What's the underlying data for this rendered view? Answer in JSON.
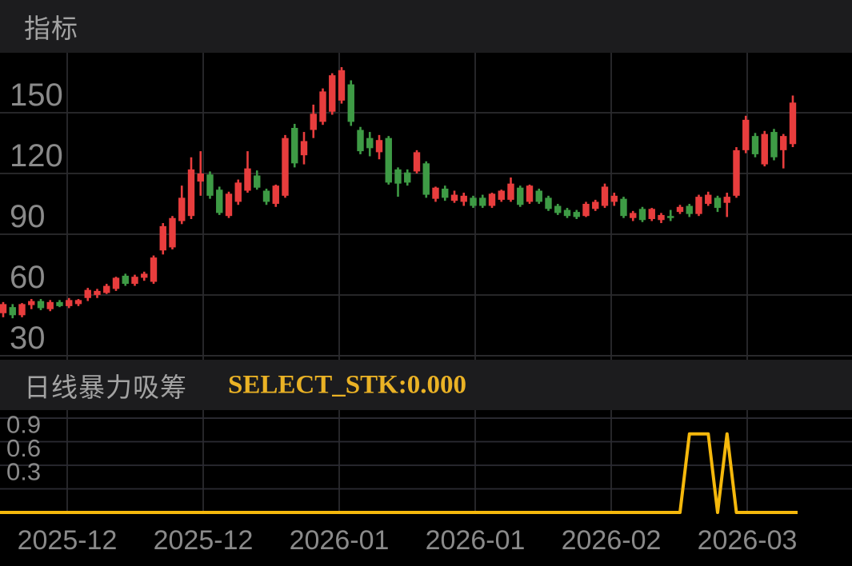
{
  "panel1": {
    "title": "指标"
  },
  "panel2": {
    "title": "日线暴力吸筹",
    "value_label": "SELECT_STK:0.000"
  },
  "colors": {
    "background": "#000000",
    "header_band": "#1c1c1e",
    "header_text": "#a3a3a3",
    "axis_text": "#8a8a8a",
    "grid": "#2b2b2e",
    "grid_lower": "#2b2b33",
    "up": "#e83d3d",
    "down": "#3e9b45",
    "signal_line": "#f5b80c",
    "signal_text": "#eab225"
  },
  "x_axis": {
    "labels": [
      "2025-12",
      "2025-12",
      "2026-01",
      "2026-01",
      "2026-02",
      "2026-03"
    ],
    "positions": [
      84,
      254,
      424,
      594,
      764,
      934
    ]
  },
  "chart_data": [
    {
      "type": "candlestick",
      "panel": "price",
      "title": "指标",
      "y_ticks": [
        150,
        120,
        90,
        60,
        30
      ],
      "ylim": [
        20,
        180
      ],
      "grid": true,
      "up_color": "#e83d3d",
      "down_color": "#3e9b45",
      "note": "candles as [open, high, low, close]; red = close >= open (CN convention)",
      "candles": [
        [
          51,
          56.5,
          49,
          55.5
        ],
        [
          54,
          55.5,
          48.5,
          50
        ],
        [
          50,
          56,
          49,
          55.5
        ],
        [
          55,
          58,
          53,
          57
        ],
        [
          57,
          58,
          52.5,
          53.5
        ],
        [
          53,
          57.5,
          52,
          56.5
        ],
        [
          56.5,
          57.5,
          54,
          54.5
        ],
        [
          54.5,
          58.5,
          53.5,
          57.5
        ],
        [
          55.5,
          58,
          54.5,
          57.5
        ],
        [
          58.5,
          63.5,
          57,
          62.5
        ],
        [
          60,
          63,
          58.5,
          62
        ],
        [
          61,
          65.5,
          60.5,
          64.5
        ],
        [
          63,
          69,
          62,
          68.5
        ],
        [
          69.5,
          70.5,
          64.5,
          65.5
        ],
        [
          65.5,
          70,
          64.5,
          69
        ],
        [
          68.5,
          71.5,
          67,
          70.5
        ],
        [
          66.5,
          79.5,
          65.5,
          78.5
        ],
        [
          82,
          95.5,
          80,
          94
        ],
        [
          83.5,
          99,
          82.5,
          98
        ],
        [
          96.5,
          114,
          95,
          108
        ],
        [
          99,
          128,
          97.5,
          122
        ],
        [
          116,
          131,
          109,
          120
        ],
        [
          119.5,
          121,
          107.5,
          109
        ],
        [
          112,
          113.5,
          99.5,
          100.5
        ],
        [
          99,
          111,
          98,
          110
        ],
        [
          106,
          117,
          104.5,
          115.5
        ],
        [
          111.5,
          131,
          110.5,
          122.5
        ],
        [
          119,
          121.5,
          112,
          113
        ],
        [
          111.5,
          112.5,
          104.5,
          106
        ],
        [
          105,
          114.5,
          103.5,
          114
        ],
        [
          109,
          139,
          108,
          137.5
        ],
        [
          142.5,
          144.5,
          123,
          125
        ],
        [
          129,
          140.5,
          124.5,
          136
        ],
        [
          141.5,
          154,
          137.5,
          149.5
        ],
        [
          145.5,
          162,
          144,
          160.5
        ],
        [
          150.5,
          169.5,
          149,
          168.5
        ],
        [
          156,
          172.5,
          154.5,
          171
        ],
        [
          164,
          166,
          143.5,
          145.5
        ],
        [
          141.5,
          143,
          129.5,
          131
        ],
        [
          137.5,
          140.5,
          128.5,
          132.5
        ],
        [
          130.5,
          139,
          127,
          136.5
        ],
        [
          137.5,
          138.5,
          114.5,
          115.5
        ],
        [
          122,
          123,
          108.5,
          115
        ],
        [
          120.5,
          122,
          114,
          115.5
        ],
        [
          121,
          131.5,
          120,
          130.5
        ],
        [
          125,
          126,
          108,
          109.5
        ],
        [
          107.5,
          113.5,
          106,
          113
        ],
        [
          112.5,
          114,
          106.5,
          108
        ],
        [
          106.5,
          111.5,
          105.5,
          109.5
        ],
        [
          106,
          110.5,
          104,
          109
        ],
        [
          108,
          109,
          103,
          104
        ],
        [
          108,
          109.5,
          103,
          104
        ],
        [
          104,
          110.5,
          103,
          110
        ],
        [
          107,
          112,
          106,
          111.5
        ],
        [
          107,
          118,
          106,
          115
        ],
        [
          113,
          114,
          103.5,
          104.5
        ],
        [
          106,
          114.5,
          105,
          114
        ],
        [
          111.5,
          112.5,
          105,
          106
        ],
        [
          108,
          109,
          101.5,
          102.5
        ],
        [
          104,
          105,
          99.5,
          100.5
        ],
        [
          102,
          103,
          98,
          99
        ],
        [
          101,
          102,
          97.5,
          98.5
        ],
        [
          99,
          106,
          98.5,
          105
        ],
        [
          102.5,
          107,
          101.5,
          106
        ],
        [
          104,
          115,
          103,
          113.5
        ],
        [
          106,
          110.5,
          104,
          109
        ],
        [
          107.5,
          108.5,
          98,
          99
        ],
        [
          98,
          101.5,
          96.5,
          100.5
        ],
        [
          102.5,
          103.5,
          96,
          97
        ],
        [
          97.5,
          103,
          96.5,
          102.5
        ],
        [
          97,
          100.5,
          95.5,
          99.5
        ],
        [
          99,
          102,
          96.5,
          98
        ],
        [
          101,
          104.5,
          100,
          103.5
        ],
        [
          104,
          105,
          98.5,
          100
        ],
        [
          100,
          109.5,
          99,
          108.5
        ],
        [
          105,
          111,
          104,
          109.5
        ],
        [
          108,
          109,
          101,
          103
        ],
        [
          105.5,
          110.5,
          98.5,
          108.5
        ],
        [
          109,
          133,
          108,
          131.5
        ],
        [
          131.5,
          148.5,
          130,
          146.5
        ],
        [
          138.5,
          140,
          128,
          129.5
        ],
        [
          124.5,
          141,
          123.5,
          139.5
        ],
        [
          140.5,
          142,
          126.5,
          128
        ],
        [
          131.5,
          139.5,
          122.5,
          138.5
        ],
        [
          134.5,
          158.5,
          133,
          155
        ]
      ]
    },
    {
      "type": "line",
      "panel": "indicator",
      "name": "日线暴力吸筹",
      "current_value_label": "SELECT_STK:0.000",
      "y_ticks": [
        0.9,
        0.6,
        0.3
      ],
      "grid_values": [
        1.2,
        0.9,
        0.6,
        0.3
      ],
      "ylim": [
        0,
        1.3
      ],
      "color": "#f5b80c",
      "values": [
        0,
        0,
        0,
        0,
        0,
        0,
        0,
        0,
        0,
        0,
        0,
        0,
        0,
        0,
        0,
        0,
        0,
        0,
        0,
        0,
        0,
        0,
        0,
        0,
        0,
        0,
        0,
        0,
        0,
        0,
        0,
        0,
        0,
        0,
        0,
        0,
        0,
        0,
        0,
        0,
        0,
        0,
        0,
        0,
        0,
        0,
        0,
        0,
        0,
        0,
        0,
        0,
        0,
        0,
        0,
        0,
        0,
        0,
        0,
        0,
        0,
        0,
        0,
        0,
        0,
        0,
        0,
        0,
        0,
        0,
        0,
        0,
        0,
        1,
        1,
        1,
        0,
        1,
        0,
        0,
        0,
        0,
        0,
        0,
        0
      ]
    }
  ]
}
